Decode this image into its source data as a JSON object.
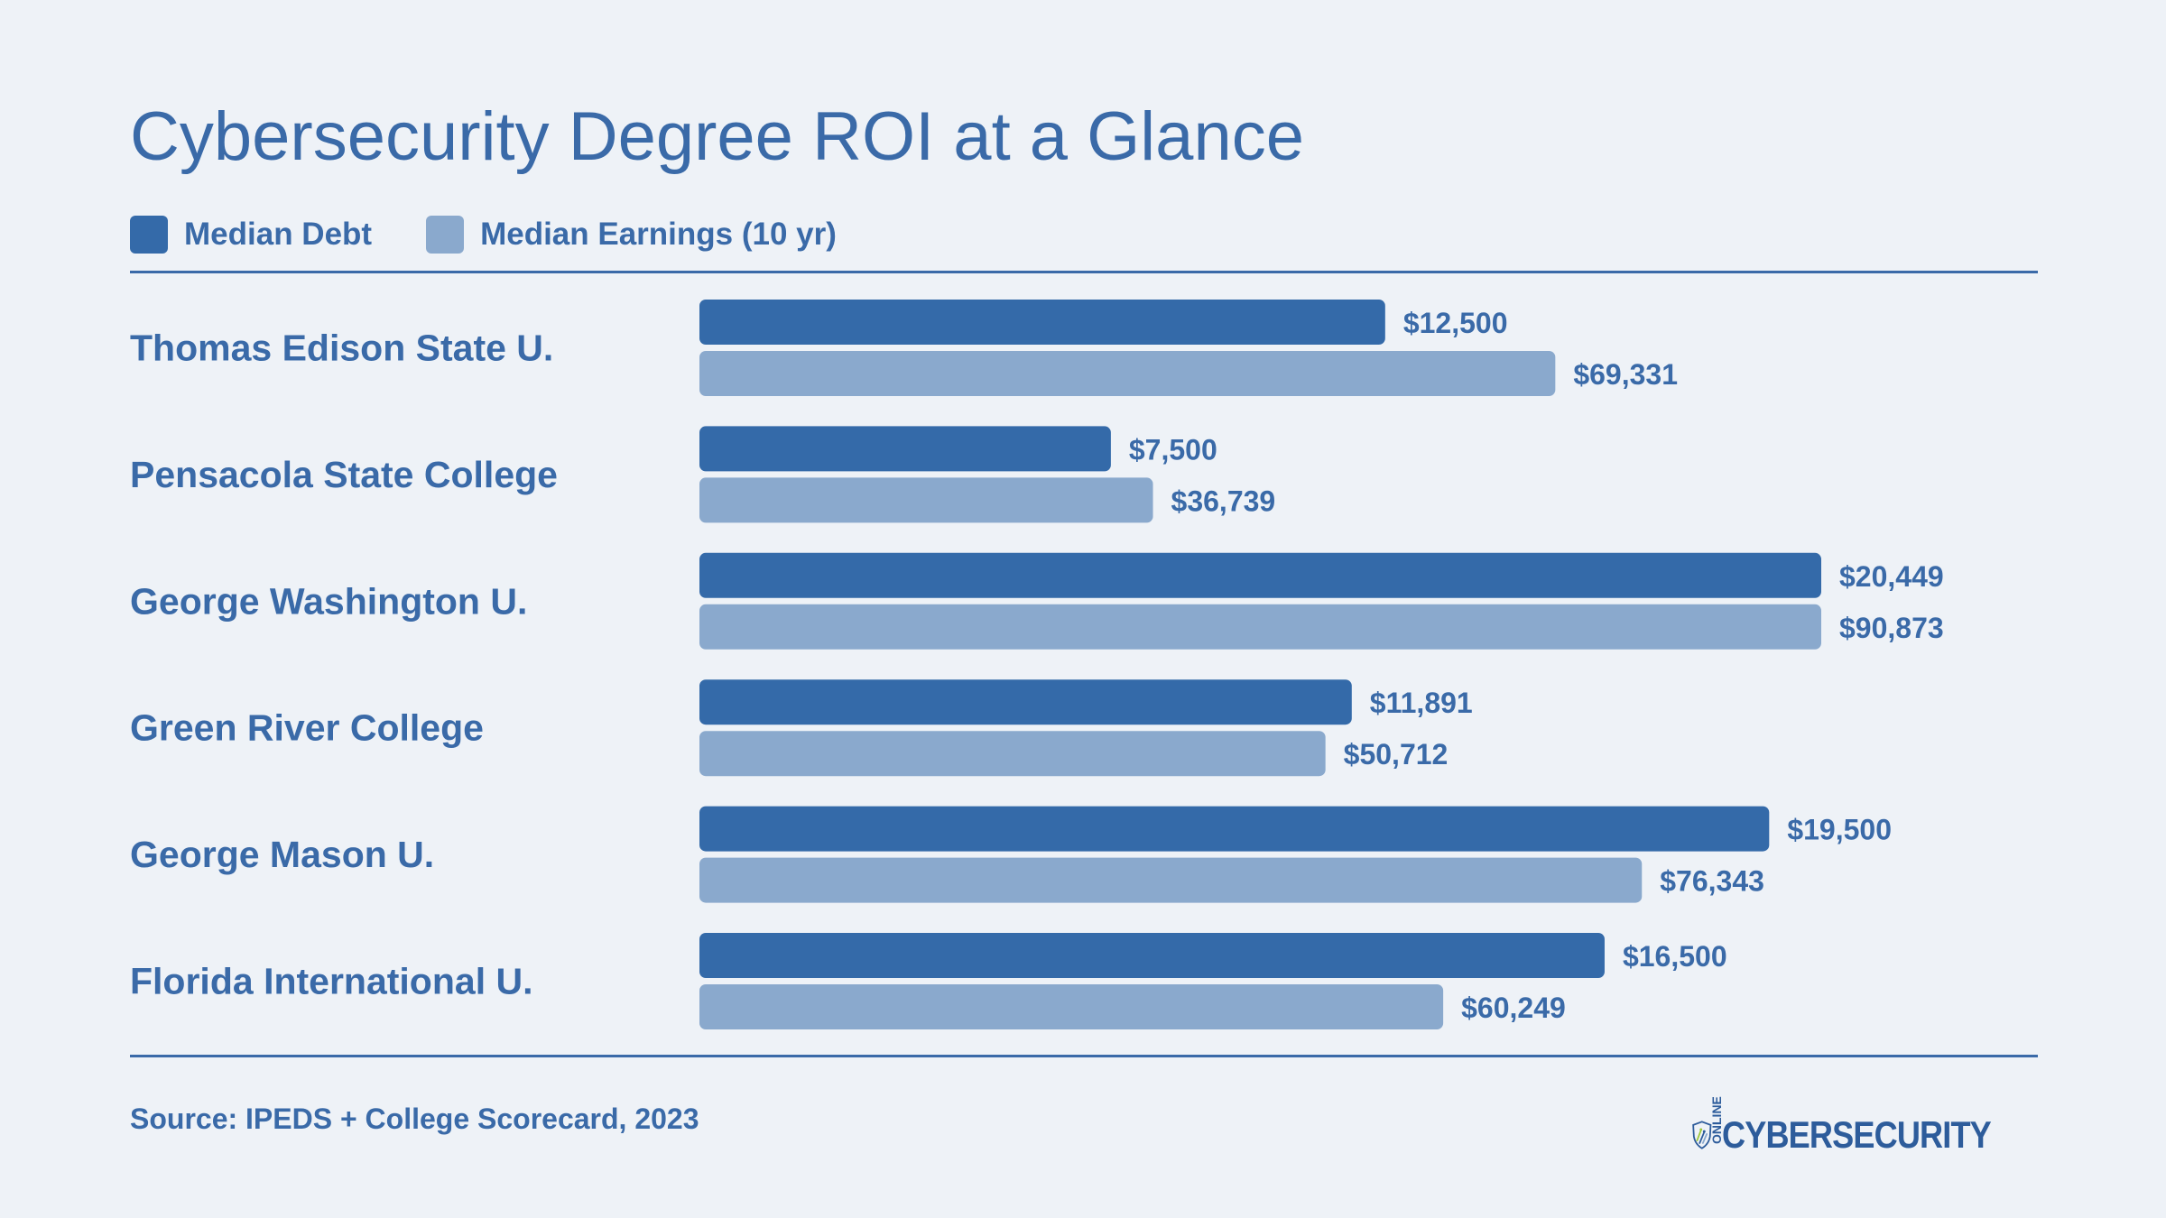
{
  "header": {
    "title": "Cybersecurity Degree ROI at a Glance"
  },
  "legend": [
    {
      "label": "Median Debt",
      "color": "#346aa9"
    },
    {
      "label": "Median Earnings (10 yr)",
      "color": "#8aa9cd"
    }
  ],
  "footer": {
    "source": "Source: IPEDS + College Scorecard, 2023",
    "logo_text": "CYBERSECURITY",
    "logo_small_text": "ONLINE"
  },
  "chart_data": {
    "type": "bar",
    "orientation": "horizontal",
    "categories": [
      "Thomas Edison State U.",
      "Pensacola State College",
      "George Washington U.",
      "Green River College",
      "George Mason U.",
      "Florida International U."
    ],
    "series": [
      {
        "name": "Median Debt",
        "color": "#346aa9",
        "values": [
          12500,
          7500,
          20449,
          11891,
          19500,
          16500
        ],
        "labels": [
          "$12,500",
          "$7,500",
          "$20,449",
          "$11,891",
          "$19,500",
          "$16,500"
        ]
      },
      {
        "name": "Median Earnings (10 yr)",
        "color": "#8aa9cd",
        "values": [
          69331,
          36739,
          90873,
          50712,
          76343,
          60249
        ],
        "labels": [
          "$69,331",
          "$36,739",
          "$90,873",
          "$50,712",
          "$76,343",
          "$60,249"
        ]
      }
    ],
    "scale": "each series scaled to its own maximum",
    "grid": false,
    "legend_position": "top-left"
  }
}
